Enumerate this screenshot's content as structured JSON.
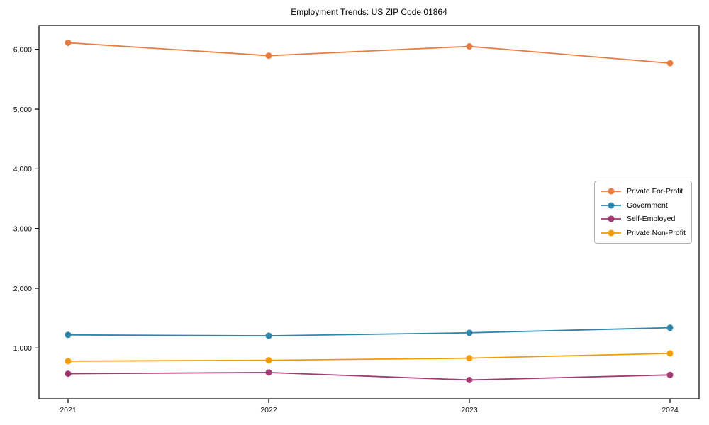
{
  "chart_data": {
    "type": "line",
    "title": "Employment Trends: US ZIP Code 01864",
    "categories": [
      "2021",
      "2022",
      "2023",
      "2024"
    ],
    "series": [
      {
        "name": "Private For-Profit",
        "color": "#e87d42",
        "values": [
          6110,
          5895,
          6050,
          5770
        ]
      },
      {
        "name": "Government",
        "color": "#2e86ab",
        "values": [
          1220,
          1205,
          1255,
          1340
        ]
      },
      {
        "name": "Self-Employed",
        "color": "#a23b72",
        "values": [
          570,
          590,
          465,
          550
        ]
      },
      {
        "name": "Private Non-Profit",
        "color": "#f29d05",
        "values": [
          780,
          795,
          830,
          910
        ]
      }
    ],
    "xlabel": "",
    "ylabel": "",
    "ylim": [
      150,
      6400
    ],
    "yticks": [
      1000,
      2000,
      3000,
      4000,
      5000,
      6000
    ],
    "ytick_labels": [
      "1,000",
      "2,000",
      "3,000",
      "4,000",
      "5,000",
      "6,000"
    ],
    "grid": false,
    "legend_position": "center-right",
    "marker": "circle",
    "colors": {
      "axis": "#000000",
      "tick_text": "#111111",
      "legend_border": "#b0b0b0",
      "background": "#ffffff"
    }
  }
}
